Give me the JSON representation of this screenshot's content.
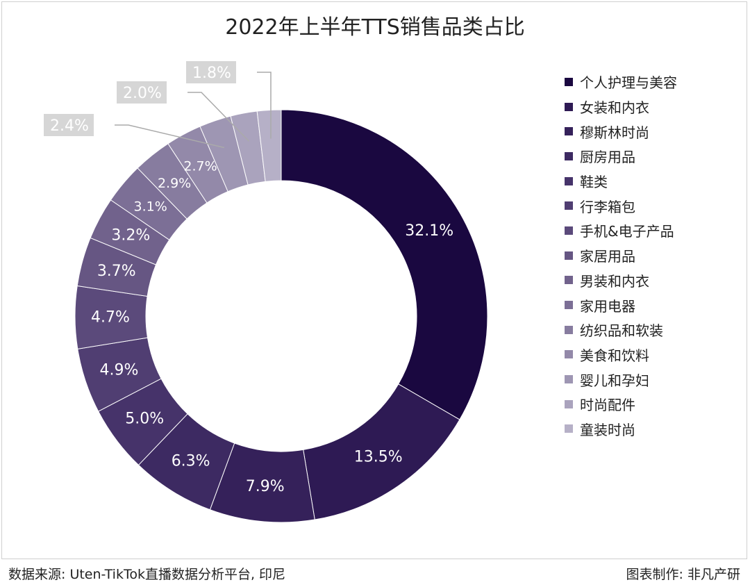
{
  "chart_data": {
    "type": "pie",
    "variant": "donut",
    "title": "2022年上半年TTS销售品类占比",
    "categories": [
      "个人护理与美容",
      "女装和内衣",
      "穆斯林时尚",
      "厨房用品",
      "鞋类",
      "行李箱包",
      "手机&电子产品",
      "家居用品",
      "男装和内衣",
      "家用电器",
      "纺织品和软装",
      "美食和饮料",
      "婴儿和孕妇",
      "时尚配件",
      "童装时尚"
    ],
    "values": [
      32.1,
      13.5,
      7.9,
      6.3,
      5.0,
      4.9,
      4.7,
      3.7,
      3.2,
      3.1,
      2.9,
      2.7,
      2.4,
      2.0,
      1.8
    ],
    "labels": [
      "32.1%",
      "13.5%",
      "7.9%",
      "6.3%",
      "5.0%",
      "4.9%",
      "4.7%",
      "3.7%",
      "3.2%",
      "3.1%",
      "2.9%",
      "2.7%",
      "2.4%",
      "2.0%",
      "1.8%"
    ],
    "colors": [
      "#1a0840",
      "#2e1a54",
      "#35215a",
      "#3d2a62",
      "#46336a",
      "#503e72",
      "#5b4a7b",
      "#665683",
      "#71628c",
      "#7c6f96",
      "#877c9f",
      "#9389a9",
      "#9e96b3",
      "#aaa3bd",
      "#b6b0c7"
    ],
    "legend_position": "right"
  },
  "footer": {
    "source": "数据来源: Uten-TikTok直播数据分析平台, 印尼",
    "credit": "图表制作: 非凡产研"
  }
}
